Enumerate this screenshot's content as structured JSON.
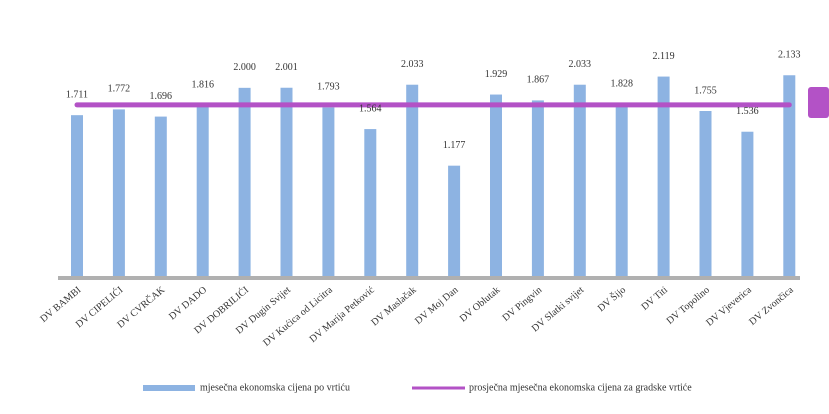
{
  "chart_data": {
    "type": "bar",
    "categories": [
      "DV BAMBI",
      "DV CIPELIĆI",
      "DV CVRČAK",
      "DV DADO",
      "DV DOBRILIĆI",
      "DV Dugin Svijet",
      "DV Kućica od Licitra",
      "DV Marija Petković",
      "DV Maslačak",
      "DV Moj Dan",
      "DV Oblutak",
      "DV Pingvin",
      "DV Slatki svijet",
      "DV Šijo",
      "DV Titi",
      "DV Topolino",
      "DV Vjeverica",
      "DV Zvončica"
    ],
    "series": [
      {
        "name": "mjesečna ekonomska cijena po vrtiću",
        "type": "bar",
        "color": "#8db3e2",
        "values": [
          1711,
          1772,
          1696,
          1816,
          2000,
          2001,
          1793,
          1564,
          2033,
          1177,
          1929,
          1867,
          2033,
          1828,
          2119,
          1755,
          1536,
          2133
        ],
        "value_labels": [
          "1.711",
          "1.772",
          "1.696",
          "1.816",
          "2.000",
          "2.001",
          "1.793",
          "1.564",
          "2.033",
          "1.177",
          "1.929",
          "1.867",
          "2.033",
          "1.828",
          "2.119",
          "1.755",
          "1.536",
          "2.133"
        ]
      },
      {
        "name": "prosječna mjesečna ekonomska cijena za gradske vrtiće",
        "type": "line",
        "color": "#b352c6",
        "values": [
          1820,
          1820,
          1820,
          1820,
          1820,
          1820,
          1820,
          1820,
          1820,
          1820,
          1820,
          1820,
          1820,
          1820,
          1820,
          1820,
          1820,
          1820
        ]
      }
    ],
    "ylim": [
      0,
      2400
    ]
  }
}
